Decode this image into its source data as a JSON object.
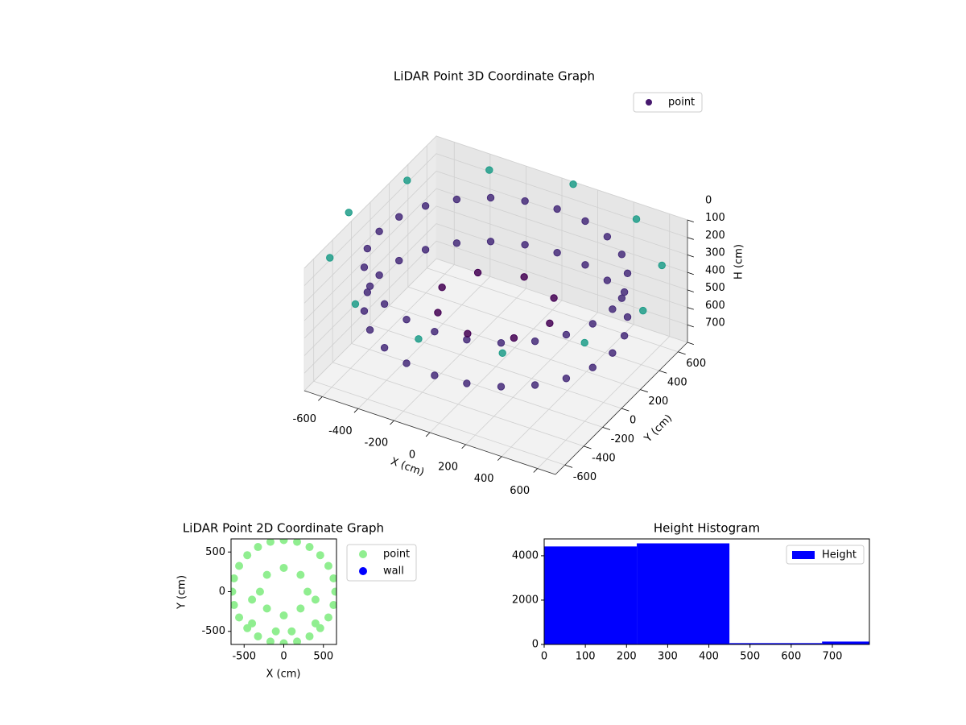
{
  "chart_data": [
    {
      "type": "scatter3d",
      "title": "LiDAR Point 3D Coordinate Graph",
      "x_label": "X (cm)",
      "y_label": "Y (cm)",
      "z_label": "H (cm)",
      "xlim": [
        -700,
        700
      ],
      "xticks": [
        -600,
        -400,
        -200,
        0,
        200,
        400,
        600
      ],
      "ylim": [
        -700,
        700
      ],
      "yticks": [
        -600,
        -400,
        -200,
        0,
        200,
        400,
        600
      ],
      "zlim": [
        0,
        700
      ],
      "zticks": [
        0,
        100,
        200,
        300,
        400,
        500,
        600,
        700
      ],
      "z_inverted": true,
      "colormap": "viridis",
      "color_by": "distance",
      "clim": [
        600,
        1000
      ],
      "legend": "upper right",
      "grid": true,
      "series": [
        {
          "name": "point",
          "color": "#46186e",
          "x": [
            650,
            628,
            563,
            460,
            325,
            168,
            0,
            -168,
            -325,
            -460,
            -563,
            -628,
            -650,
            -628,
            -563,
            -460,
            -325,
            -168,
            0,
            168,
            325,
            460,
            563,
            628,
            650,
            628,
            563,
            460,
            325,
            168,
            0,
            -168,
            -325,
            -460,
            -563,
            -628,
            -650,
            -628,
            -563,
            -460,
            -325,
            -168,
            0,
            168,
            325,
            460,
            563,
            628,
            300,
            212,
            0,
            -212,
            -300,
            -212,
            0,
            212,
            820,
            710,
            410,
            0,
            -410,
            -710,
            -820,
            -710,
            -410,
            0,
            410,
            710
          ],
          "y": [
            0,
            168,
            325,
            460,
            563,
            628,
            650,
            628,
            563,
            460,
            325,
            168,
            0,
            -168,
            -325,
            -460,
            -563,
            -628,
            -650,
            -628,
            -563,
            -460,
            -325,
            -168,
            0,
            168,
            325,
            460,
            563,
            628,
            650,
            628,
            563,
            460,
            325,
            168,
            0,
            -168,
            -325,
            -460,
            -563,
            -628,
            -650,
            -628,
            -563,
            -460,
            -325,
            -168,
            0,
            212,
            300,
            212,
            0,
            -212,
            -300,
            -212,
            0,
            410,
            710,
            820,
            710,
            410,
            0,
            -410,
            -710,
            -820,
            -710,
            -410
          ],
          "z": [
            150,
            150,
            150,
            150,
            150,
            150,
            150,
            150,
            150,
            150,
            150,
            150,
            150,
            150,
            150,
            150,
            150,
            150,
            150,
            150,
            150,
            150,
            150,
            150,
            400,
            400,
            400,
            400,
            400,
            400,
            400,
            400,
            400,
            400,
            400,
            400,
            400,
            400,
            400,
            400,
            400,
            400,
            400,
            400,
            400,
            400,
            400,
            400,
            350,
            350,
            350,
            350,
            350,
            350,
            350,
            350,
            100,
            100,
            100,
            100,
            100,
            100,
            100,
            100,
            100,
            100,
            100,
            100
          ]
        }
      ]
    },
    {
      "type": "scatter",
      "title": "LiDAR Point 2D Coordinate Graph",
      "x_label": "X (cm)",
      "y_label": "Y (cm)",
      "xlim": [
        -665,
        665
      ],
      "xticks": [
        -500,
        0,
        500
      ],
      "ylim": [
        -665,
        665
      ],
      "yticks": [
        -500,
        0,
        500
      ],
      "legend": "outside right",
      "series": [
        {
          "name": "point",
          "color": "#90ee90",
          "x": [
            650,
            628,
            563,
            460,
            325,
            168,
            0,
            -168,
            -325,
            -460,
            -563,
            -628,
            -650,
            -628,
            -563,
            -460,
            -325,
            -168,
            0,
            168,
            325,
            460,
            563,
            628,
            300,
            212,
            0,
            -212,
            -300,
            -212,
            0,
            212,
            100,
            -100,
            -400,
            400,
            -400,
            400
          ],
          "y": [
            0,
            168,
            325,
            460,
            563,
            628,
            650,
            628,
            563,
            460,
            325,
            168,
            0,
            -168,
            -325,
            -460,
            -563,
            -628,
            -650,
            -628,
            -563,
            -460,
            -325,
            -168,
            0,
            212,
            300,
            212,
            0,
            -212,
            -300,
            -212,
            -500,
            -500,
            -400,
            -400,
            -100,
            -100
          ]
        },
        {
          "name": "wall",
          "color": "#0000ff",
          "x": [],
          "y": []
        }
      ]
    },
    {
      "type": "histogram",
      "title": "Height Histogram",
      "bins": [
        0,
        225,
        450,
        675,
        790
      ],
      "counts": [
        4420,
        4560,
        60,
        130
      ],
      "color": "#0000ff",
      "name": "Height",
      "legend": "upper right",
      "xlim": [
        0,
        790
      ],
      "xticks": [
        0,
        100,
        200,
        300,
        400,
        500,
        600,
        700
      ],
      "ylim": [
        0,
        4760
      ],
      "yticks": [
        0,
        2000,
        4000
      ]
    }
  ]
}
